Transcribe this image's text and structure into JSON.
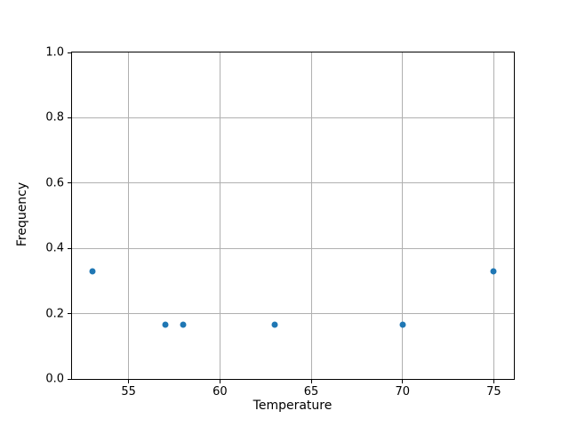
{
  "chart_data": {
    "type": "scatter",
    "title": "",
    "xlabel": "Temperature",
    "ylabel": "Frequency",
    "x": [
      53,
      57,
      58,
      63,
      70,
      75
    ],
    "y": [
      0.33,
      0.165,
      0.165,
      0.165,
      0.165,
      0.33
    ],
    "xlim": [
      51.9,
      76.1
    ],
    "ylim": [
      0.0,
      1.0
    ],
    "xticks": [
      55,
      60,
      65,
      70,
      75
    ],
    "xtick_labels": [
      "55",
      "60",
      "65",
      "70",
      "75"
    ],
    "yticks": [
      0.0,
      0.2,
      0.4,
      0.6,
      0.8,
      1.0
    ],
    "ytick_labels": [
      "0.0",
      "0.2",
      "0.4",
      "0.6",
      "0.8",
      "1.0"
    ],
    "grid": true,
    "legend": "none",
    "marker_color": "#1f77b4",
    "grid_color": "#b0b0b0",
    "spine_color": "#000000"
  }
}
